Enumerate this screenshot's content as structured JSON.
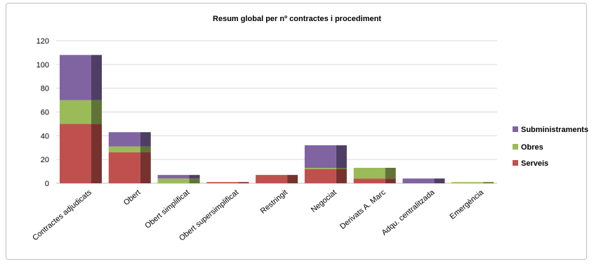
{
  "chart_data": {
    "type": "bar",
    "stacked": true,
    "title": "Resum global per nº contractes i procediment",
    "xlabel": "",
    "ylabel": "",
    "ylim": [
      0,
      120
    ],
    "yticks": [
      0,
      20,
      40,
      60,
      80,
      100,
      120
    ],
    "grid": true,
    "legend_position": "right",
    "categories": [
      "Contractes adjudicats",
      "Obert",
      "Obert simplificat",
      "Obert supersimplificat",
      "Restringit",
      "Negociat",
      "Derivats A. Marc",
      "Adqu. centralitzada",
      "Emergència"
    ],
    "series": [
      {
        "name": "Serveis",
        "color": "#c0504d",
        "values": [
          50,
          26,
          0,
          1,
          7,
          12,
          4,
          0,
          0
        ]
      },
      {
        "name": "Obres",
        "color": "#9bbb59",
        "values": [
          20,
          5,
          4,
          0,
          0,
          1,
          9,
          0,
          1
        ]
      },
      {
        "name": "Subministraments",
        "color": "#8064a2",
        "values": [
          38,
          12,
          3,
          0,
          0,
          19,
          0,
          4,
          0
        ]
      }
    ],
    "legend_order": [
      "Subministraments",
      "Obres",
      "Serveis"
    ]
  }
}
